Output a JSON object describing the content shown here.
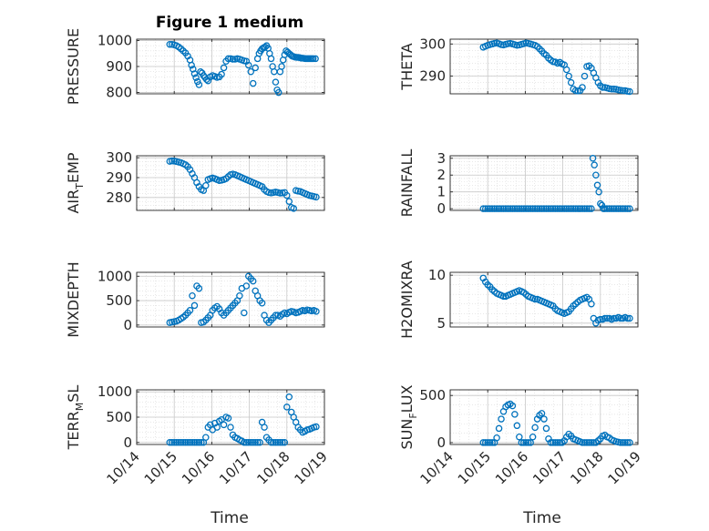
{
  "figure": {
    "title": "Figure 1 medium",
    "xlabel": "Time",
    "marker_color": "#0072BD",
    "grid": true,
    "grid_style": "dotted minor+major"
  },
  "chart_data": [
    {
      "type": "scatter",
      "ylabel_parts": [
        "PRESSURE"
      ],
      "ylim": [
        795,
        1005
      ],
      "yticks": [
        800,
        900,
        1000
      ],
      "xticks": [
        "10/14",
        "10/15",
        "10/16",
        "10/17",
        "10/18",
        "10/19"
      ],
      "show_xtick_labels": false,
      "x_days": [
        0.88,
        0.94,
        1.0,
        1.06,
        1.12,
        1.18,
        1.24,
        1.3,
        1.36,
        1.42,
        1.46,
        1.5,
        1.54,
        1.58,
        1.62,
        1.66,
        1.7,
        1.74,
        1.78,
        1.82,
        1.86,
        1.9,
        1.96,
        2.02,
        2.08,
        2.14,
        2.2,
        2.26,
        2.32,
        2.38,
        2.44,
        2.5,
        2.56,
        2.62,
        2.68,
        2.74,
        2.8,
        2.86,
        2.92,
        2.98,
        3.04,
        3.1,
        3.16,
        3.22,
        3.26,
        3.3,
        3.34,
        3.38,
        3.42,
        3.46,
        3.5,
        3.54,
        3.58,
        3.62,
        3.66,
        3.7,
        3.74,
        3.78,
        3.82,
        3.86,
        3.9,
        3.94,
        3.98,
        4.02,
        4.06,
        4.1,
        4.14,
        4.18,
        4.22,
        4.26,
        4.3,
        4.34,
        4.38,
        4.42,
        4.46,
        4.5,
        4.54,
        4.58,
        4.62,
        4.66,
        4.7,
        4.76
      ],
      "y": [
        985,
        985,
        983,
        980,
        975,
        968,
        960,
        952,
        940,
        925,
        905,
        890,
        872,
        857,
        842,
        830,
        880,
        875,
        865,
        858,
        850,
        845,
        860,
        865,
        862,
        858,
        860,
        870,
        895,
        920,
        930,
        930,
        928,
        928,
        930,
        928,
        925,
        922,
        920,
        905,
        880,
        835,
        895,
        930,
        950,
        960,
        968,
        972,
        975,
        980,
        970,
        950,
        930,
        900,
        880,
        840,
        810,
        800,
        880,
        900,
        925,
        945,
        960,
        955,
        950,
        945,
        940,
        938,
        936,
        935,
        935,
        934,
        932,
        932,
        931,
        930,
        930,
        930,
        930,
        930,
        930,
        930
      ]
    },
    {
      "type": "scatter",
      "ylabel_parts": [
        "THETA"
      ],
      "ylim": [
        284.5,
        301.5
      ],
      "yticks": [
        290,
        300
      ],
      "xticks": [
        "10/14",
        "10/15",
        "10/16",
        "10/17",
        "10/18",
        "10/19"
      ],
      "show_xtick_labels": false,
      "x_days": [
        0.88,
        0.94,
        1.0,
        1.06,
        1.12,
        1.18,
        1.24,
        1.3,
        1.36,
        1.42,
        1.48,
        1.54,
        1.6,
        1.66,
        1.72,
        1.78,
        1.84,
        1.9,
        1.96,
        2.02,
        2.08,
        2.14,
        2.2,
        2.26,
        2.32,
        2.38,
        2.44,
        2.5,
        2.56,
        2.62,
        2.68,
        2.74,
        2.8,
        2.86,
        2.92,
        2.98,
        3.04,
        3.1,
        3.16,
        3.22,
        3.28,
        3.34,
        3.4,
        3.46,
        3.52,
        3.58,
        3.64,
        3.7,
        3.76,
        3.82,
        3.88,
        3.94,
        4.0,
        4.06,
        4.12,
        4.18,
        4.24,
        4.3,
        4.36,
        4.42,
        4.48,
        4.54,
        4.6,
        4.66,
        4.72,
        4.78
      ],
      "y": [
        299,
        299.3,
        299.6,
        299.8,
        300,
        300.2,
        300.3,
        300.1,
        299.8,
        299.7,
        299.9,
        300.1,
        300.2,
        300,
        299.8,
        299.6,
        299.7,
        299.9,
        300.1,
        300.3,
        300.2,
        300,
        299.8,
        299.6,
        299.2,
        298.5,
        297.8,
        297,
        296.5,
        295.6,
        295,
        294.5,
        294.4,
        294,
        294.3,
        293.8,
        293.5,
        292,
        290,
        288,
        286,
        285.5,
        285.4,
        285.5,
        286.5,
        290,
        293,
        293.2,
        292.5,
        291,
        289.5,
        288,
        287,
        286.5,
        286.5,
        286.3,
        286.1,
        286,
        286,
        285.9,
        285.7,
        285.6,
        285.5,
        285.5,
        285.3,
        285.2
      ]
    },
    {
      "type": "scatter",
      "ylabel_parts": [
        "AIR",
        "T",
        "EMP"
      ],
      "ylim": [
        273.5,
        301
      ],
      "yticks": [
        280,
        290,
        300
      ],
      "xticks": [
        "10/14",
        "10/15",
        "10/16",
        "10/17",
        "10/18",
        "10/19"
      ],
      "show_xtick_labels": false,
      "x_days": [
        0.88,
        0.94,
        1.0,
        1.06,
        1.12,
        1.18,
        1.24,
        1.3,
        1.36,
        1.42,
        1.48,
        1.54,
        1.6,
        1.66,
        1.72,
        1.78,
        1.84,
        1.9,
        1.96,
        2.02,
        2.08,
        2.14,
        2.2,
        2.26,
        2.32,
        2.38,
        2.44,
        2.5,
        2.56,
        2.62,
        2.68,
        2.74,
        2.8,
        2.86,
        2.92,
        2.98,
        3.04,
        3.1,
        3.16,
        3.22,
        3.28,
        3.34,
        3.4,
        3.46,
        3.52,
        3.58,
        3.64,
        3.7,
        3.76,
        3.82,
        3.88,
        3.94,
        4.0,
        4.06,
        4.12,
        4.18,
        4.24,
        4.3,
        4.36,
        4.42,
        4.48,
        4.54,
        4.6,
        4.66,
        4.72,
        4.78
      ],
      "y": [
        298.2,
        298.4,
        298.3,
        298.1,
        297.8,
        297.5,
        297,
        296.5,
        295.5,
        294,
        292,
        290,
        287.5,
        285.5,
        284,
        283.5,
        286,
        289,
        289.5,
        289.8,
        289.5,
        289,
        288.5,
        288.7,
        289,
        289.5,
        290.5,
        291.5,
        291.8,
        291.5,
        291,
        290.5,
        290,
        289.5,
        289,
        288.5,
        288,
        287.5,
        287,
        286.5,
        286,
        285.5,
        284,
        283,
        282.5,
        282.3,
        282.5,
        282.7,
        282.5,
        282.2,
        282.3,
        282.5,
        281,
        278,
        275,
        274.5,
        283.5,
        283.2,
        283,
        282.5,
        282,
        281.5,
        281,
        280.8,
        280.5,
        280.2
      ]
    },
    {
      "type": "scatter",
      "ylabel_parts": [
        "RAINFALL"
      ],
      "ylim": [
        -0.1,
        3.15
      ],
      "yticks": [
        0,
        1,
        2,
        3
      ],
      "xticks": [
        "10/14",
        "10/15",
        "10/16",
        "10/17",
        "10/18",
        "10/19"
      ],
      "show_xtick_labels": false,
      "x_days": [
        0.88,
        0.94,
        1.0,
        1.06,
        1.12,
        1.18,
        1.24,
        1.3,
        1.36,
        1.42,
        1.48,
        1.54,
        1.6,
        1.66,
        1.72,
        1.78,
        1.84,
        1.9,
        1.96,
        2.02,
        2.08,
        2.14,
        2.2,
        2.26,
        2.32,
        2.38,
        2.44,
        2.5,
        2.56,
        2.62,
        2.68,
        2.74,
        2.8,
        2.86,
        2.92,
        2.98,
        3.04,
        3.1,
        3.16,
        3.22,
        3.28,
        3.34,
        3.4,
        3.46,
        3.52,
        3.58,
        3.64,
        3.7,
        3.76,
        3.8,
        3.84,
        3.88,
        3.92,
        3.96,
        4.0,
        4.04,
        4.08,
        4.12,
        4.18,
        4.24,
        4.3,
        4.36,
        4.42,
        4.48,
        4.54,
        4.6,
        4.66,
        4.72,
        4.78
      ],
      "y": [
        0,
        0,
        0,
        0,
        0,
        0,
        0,
        0,
        0,
        0,
        0,
        0,
        0,
        0,
        0,
        0,
        0,
        0,
        0,
        0,
        0,
        0,
        0,
        0,
        0,
        0,
        0,
        0,
        0,
        0,
        0,
        0,
        0,
        0,
        0,
        0,
        0,
        0,
        0,
        0,
        0,
        0,
        0,
        0,
        0,
        0,
        0,
        0,
        0,
        3.0,
        2.6,
        2.0,
        1.4,
        1.0,
        0.3,
        0.2,
        0,
        0,
        0,
        0,
        0,
        0,
        0,
        0,
        0,
        0,
        0,
        0,
        0
      ]
    },
    {
      "type": "scatter",
      "ylabel_parts": [
        "MIXDEPTH"
      ],
      "ylim": [
        -40,
        1080
      ],
      "yticks": [
        0,
        500,
        1000
      ],
      "xticks": [
        "10/14",
        "10/15",
        "10/16",
        "10/17",
        "10/18",
        "10/19"
      ],
      "show_xtick_labels": false,
      "x_days": [
        0.88,
        0.94,
        1.0,
        1.06,
        1.12,
        1.18,
        1.24,
        1.3,
        1.36,
        1.42,
        1.48,
        1.54,
        1.6,
        1.66,
        1.72,
        1.78,
        1.84,
        1.9,
        1.96,
        2.02,
        2.08,
        2.14,
        2.2,
        2.26,
        2.32,
        2.38,
        2.44,
        2.5,
        2.56,
        2.62,
        2.68,
        2.74,
        2.8,
        2.86,
        2.92,
        2.98,
        3.04,
        3.1,
        3.16,
        3.22,
        3.28,
        3.34,
        3.4,
        3.46,
        3.52,
        3.58,
        3.64,
        3.7,
        3.76,
        3.82,
        3.88,
        3.94,
        4.0,
        4.06,
        4.12,
        4.18,
        4.24,
        4.3,
        4.36,
        4.42,
        4.48,
        4.54,
        4.6,
        4.66,
        4.72,
        4.78
      ],
      "y": [
        50,
        60,
        70,
        80,
        100,
        130,
        160,
        200,
        250,
        300,
        600,
        400,
        800,
        750,
        50,
        60,
        100,
        150,
        200,
        300,
        350,
        380,
        330,
        250,
        200,
        250,
        300,
        350,
        400,
        450,
        500,
        600,
        750,
        250,
        800,
        1000,
        950,
        900,
        700,
        600,
        500,
        450,
        200,
        100,
        50,
        100,
        150,
        200,
        200,
        180,
        220,
        250,
        230,
        260,
        280,
        270,
        250,
        260,
        280,
        300,
        290,
        310,
        300,
        290,
        300,
        280
      ]
    },
    {
      "type": "scatter",
      "ylabel_parts": [
        "H2OMIXRA"
      ],
      "ylim": [
        4.6,
        10.3
      ],
      "yticks": [
        5,
        10
      ],
      "xticks": [
        "10/14",
        "10/15",
        "10/16",
        "10/17",
        "10/18",
        "10/19"
      ],
      "show_xtick_labels": false,
      "x_days": [
        0.88,
        0.94,
        1.0,
        1.06,
        1.12,
        1.18,
        1.24,
        1.3,
        1.36,
        1.42,
        1.48,
        1.54,
        1.6,
        1.66,
        1.72,
        1.78,
        1.84,
        1.9,
        1.96,
        2.02,
        2.08,
        2.14,
        2.2,
        2.26,
        2.32,
        2.38,
        2.44,
        2.5,
        2.56,
        2.62,
        2.68,
        2.74,
        2.8,
        2.86,
        2.92,
        2.98,
        3.04,
        3.1,
        3.16,
        3.22,
        3.28,
        3.34,
        3.4,
        3.46,
        3.52,
        3.58,
        3.64,
        3.7,
        3.76,
        3.82,
        3.88,
        3.94,
        4.0,
        4.06,
        4.12,
        4.18,
        4.24,
        4.3,
        4.36,
        4.42,
        4.48,
        4.54,
        4.6,
        4.66,
        4.72,
        4.78
      ],
      "y": [
        9.7,
        9.3,
        9.0,
        8.8,
        8.5,
        8.3,
        8.1,
        8.0,
        7.9,
        7.8,
        7.8,
        7.9,
        8.0,
        8.1,
        8.2,
        8.3,
        8.4,
        8.3,
        8.2,
        8.0,
        7.8,
        7.7,
        7.6,
        7.5,
        7.5,
        7.4,
        7.3,
        7.2,
        7.1,
        7.0,
        6.9,
        6.8,
        6.5,
        6.3,
        6.2,
        6.1,
        6.0,
        6.1,
        6.2,
        6.5,
        6.8,
        7.0,
        7.2,
        7.4,
        7.5,
        7.6,
        7.7,
        7.5,
        7.0,
        5.5,
        5.0,
        5.3,
        5.4,
        5.4,
        5.5,
        5.5,
        5.5,
        5.4,
        5.5,
        5.5,
        5.6,
        5.5,
        5.5,
        5.6,
        5.5,
        5.5
      ]
    },
    {
      "type": "scatter",
      "ylabel_parts": [
        "TERR",
        "M",
        "SL"
      ],
      "ylim": [
        -40,
        1040
      ],
      "yticks": [
        0,
        500,
        1000
      ],
      "xticks": [
        "10/14",
        "10/15",
        "10/16",
        "10/17",
        "10/18",
        "10/19"
      ],
      "show_xtick_labels": true,
      "x_days": [
        0.88,
        0.94,
        1.0,
        1.06,
        1.12,
        1.18,
        1.24,
        1.3,
        1.36,
        1.42,
        1.48,
        1.54,
        1.6,
        1.66,
        1.72,
        1.78,
        1.84,
        1.9,
        1.96,
        2.02,
        2.08,
        2.14,
        2.2,
        2.26,
        2.32,
        2.38,
        2.44,
        2.5,
        2.56,
        2.62,
        2.68,
        2.74,
        2.8,
        2.86,
        2.92,
        2.98,
        3.04,
        3.1,
        3.16,
        3.22,
        3.28,
        3.34,
        3.4,
        3.46,
        3.52,
        3.58,
        3.64,
        3.7,
        3.76,
        3.82,
        3.88,
        3.94,
        4.0,
        4.06,
        4.12,
        4.18,
        4.24,
        4.3,
        4.36,
        4.42,
        4.48,
        4.54,
        4.6,
        4.66,
        4.72,
        4.78
      ],
      "y": [
        0,
        0,
        0,
        0,
        0,
        0,
        0,
        0,
        0,
        0,
        0,
        0,
        0,
        0,
        0,
        0,
        100,
        300,
        350,
        250,
        380,
        300,
        420,
        450,
        350,
        500,
        480,
        300,
        150,
        100,
        80,
        50,
        30,
        0,
        0,
        0,
        0,
        0,
        0,
        0,
        0,
        400,
        300,
        100,
        50,
        0,
        0,
        0,
        0,
        0,
        0,
        0,
        700,
        900,
        600,
        500,
        400,
        300,
        250,
        200,
        220,
        250,
        260,
        280,
        300,
        310
      ]
    },
    {
      "type": "scatter",
      "ylabel_parts": [
        "SUN",
        "F",
        "LUX"
      ],
      "ylim": [
        -20,
        560
      ],
      "yticks": [
        0,
        500
      ],
      "xticks": [
        "10/14",
        "10/15",
        "10/16",
        "10/17",
        "10/18",
        "10/19"
      ],
      "show_xtick_labels": true,
      "x_days": [
        0.88,
        0.94,
        1.0,
        1.06,
        1.12,
        1.18,
        1.24,
        1.3,
        1.36,
        1.42,
        1.48,
        1.54,
        1.6,
        1.66,
        1.72,
        1.78,
        1.84,
        1.9,
        1.96,
        2.02,
        2.08,
        2.14,
        2.2,
        2.26,
        2.32,
        2.38,
        2.44,
        2.5,
        2.56,
        2.62,
        2.68,
        2.74,
        2.8,
        2.86,
        2.92,
        2.98,
        3.04,
        3.1,
        3.16,
        3.22,
        3.28,
        3.34,
        3.4,
        3.46,
        3.52,
        3.58,
        3.64,
        3.7,
        3.76,
        3.82,
        3.88,
        3.94,
        4.0,
        4.06,
        4.12,
        4.18,
        4.24,
        4.3,
        4.36,
        4.42,
        4.48,
        4.54,
        4.6,
        4.66,
        4.72,
        4.78
      ],
      "y": [
        0,
        0,
        0,
        0,
        0,
        0,
        50,
        150,
        250,
        330,
        380,
        400,
        410,
        390,
        300,
        180,
        60,
        0,
        0,
        0,
        0,
        0,
        60,
        160,
        250,
        290,
        310,
        250,
        150,
        40,
        0,
        0,
        0,
        0,
        0,
        0,
        20,
        60,
        90,
        70,
        40,
        30,
        20,
        10,
        0,
        0,
        0,
        0,
        0,
        0,
        0,
        20,
        40,
        70,
        80,
        60,
        50,
        30,
        20,
        10,
        5,
        0,
        0,
        0,
        0,
        0
      ]
    }
  ]
}
